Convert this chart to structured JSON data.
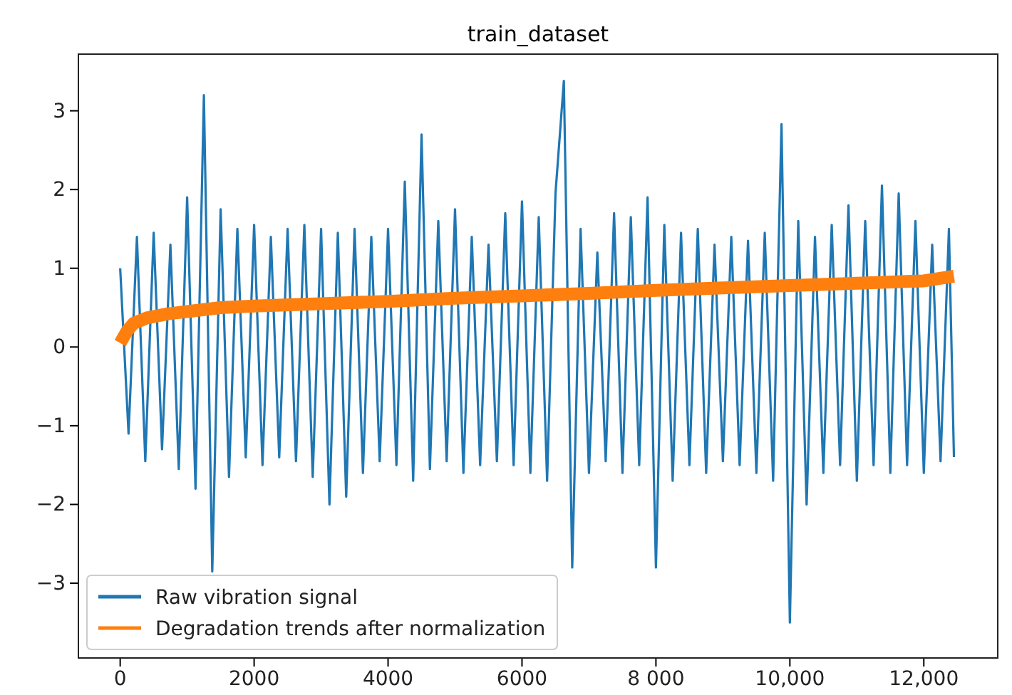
{
  "chart_data": {
    "type": "line",
    "title": "train_dataset",
    "xlim": [
      -624,
      13104
    ],
    "xticks": [
      0,
      {
        "value": 2000,
        "label": "2000"
      },
      {
        "value": 4000,
        "label": "4000"
      },
      {
        "value": 6000,
        "label": "6000"
      },
      {
        "value": 8000,
        "label": "8 000"
      },
      {
        "value": 10000,
        "label": "10,000"
      },
      {
        "value": 12000,
        "label": "12,000"
      }
    ],
    "ylim": [
      -3.95,
      3.72
    ],
    "yticks": [
      {
        "value": -3,
        "label": "−3"
      },
      {
        "value": -2,
        "label": "−2"
      },
      {
        "value": -1,
        "label": "−1"
      },
      0,
      1,
      2,
      3
    ],
    "grid": false,
    "legend": "bottom left",
    "marker": "none",
    "line_style": "solid",
    "series": [
      {
        "name": "Raw vibration signal",
        "color": "#1f77b4",
        "x": [
          0,
          125,
          250,
          375,
          500,
          625,
          750,
          875,
          1000,
          1125,
          1250,
          1375,
          1500,
          1625,
          1750,
          1875,
          2000,
          2125,
          2250,
          2375,
          2500,
          2625,
          2750,
          2875,
          3000,
          3125,
          3250,
          3375,
          3500,
          3625,
          3750,
          3875,
          4000,
          4125,
          4250,
          4375,
          4500,
          4625,
          4750,
          4875,
          5000,
          5125,
          5250,
          5375,
          5500,
          5625,
          5750,
          5875,
          6000,
          6125,
          6250,
          6375,
          6500,
          6625,
          6750,
          6875,
          7000,
          7125,
          7250,
          7375,
          7500,
          7625,
          7750,
          7875,
          8000,
          8125,
          8250,
          8375,
          8500,
          8625,
          8750,
          8875,
          9000,
          9125,
          9250,
          9375,
          9500,
          9625,
          9750,
          9875,
          10000,
          10125,
          10250,
          10375,
          10500,
          10625,
          10750,
          10875,
          11000,
          11125,
          11250,
          11375,
          11500,
          11625,
          11750,
          11875,
          12000,
          12125,
          12250,
          12375,
          12450
        ],
        "values": [
          1.0,
          -1.1,
          1.4,
          -1.45,
          1.45,
          -1.3,
          1.3,
          -1.55,
          1.9,
          -1.8,
          3.2,
          -2.85,
          1.75,
          -1.65,
          1.5,
          -1.4,
          1.55,
          -1.5,
          1.4,
          -1.4,
          1.5,
          -1.45,
          1.55,
          -1.65,
          1.5,
          -2.0,
          1.45,
          -1.9,
          1.5,
          -1.6,
          1.4,
          -1.45,
          1.5,
          -1.5,
          2.1,
          -1.7,
          2.7,
          -1.55,
          1.6,
          -1.45,
          1.75,
          -1.6,
          1.4,
          -1.5,
          1.3,
          -1.45,
          1.7,
          -1.5,
          1.85,
          -1.6,
          1.65,
          -1.7,
          1.95,
          3.38,
          -2.8,
          1.5,
          -1.6,
          1.2,
          -1.45,
          1.7,
          -1.6,
          1.65,
          -1.5,
          1.9,
          -2.8,
          1.55,
          -1.7,
          1.45,
          -1.5,
          1.5,
          -1.6,
          1.3,
          -1.45,
          1.4,
          -1.5,
          1.35,
          -1.6,
          1.45,
          -1.7,
          2.83,
          -3.5,
          1.6,
          -2.0,
          1.4,
          -1.6,
          1.55,
          -1.5,
          1.8,
          -1.7,
          1.6,
          -1.5,
          2.05,
          -1.6,
          1.95,
          -1.5,
          1.6,
          -1.6,
          1.3,
          -1.45,
          1.5,
          -1.4
        ]
      },
      {
        "name": "Degradation trends after normalization",
        "color": "#ff7f0e",
        "x": [
          0,
          100,
          200,
          400,
          700,
          1000,
          1500,
          2000,
          3000,
          4000,
          5000,
          6000,
          7000,
          8000,
          9000,
          10000,
          11000,
          12000,
          12450
        ],
        "values": [
          0.05,
          0.2,
          0.3,
          0.37,
          0.42,
          0.45,
          0.5,
          0.52,
          0.55,
          0.58,
          0.62,
          0.65,
          0.68,
          0.72,
          0.75,
          0.78,
          0.81,
          0.84,
          0.9
        ]
      }
    ]
  }
}
